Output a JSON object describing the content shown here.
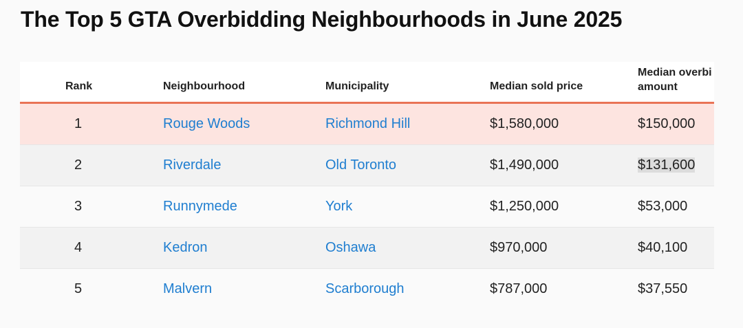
{
  "title": "The Top 5 GTA Overbidding Neighbourhoods in June 2025",
  "table": {
    "headers": {
      "rank": "Rank",
      "neighbourhood": "Neighbourhood",
      "municipality": "Municipality",
      "price": "Median sold price",
      "overbid_line1": "Median overbi",
      "overbid_line2": "amount"
    },
    "rows": [
      {
        "rank": "1",
        "neighbourhood": "Rouge Woods",
        "municipality": "Richmond Hill",
        "price": "$1,580,000",
        "overbid": "$150,000"
      },
      {
        "rank": "2",
        "neighbourhood": "Riverdale",
        "municipality": "Old Toronto",
        "price": "$1,490,000",
        "overbid": "$131,600"
      },
      {
        "rank": "3",
        "neighbourhood": "Runnymede",
        "municipality": "York",
        "price": "$1,250,000",
        "overbid": "$53,000"
      },
      {
        "rank": "4",
        "neighbourhood": "Kedron",
        "municipality": "Oshawa",
        "price": "$970,000",
        "overbid": "$40,100"
      },
      {
        "rank": "5",
        "neighbourhood": "Malvern",
        "municipality": "Scarborough",
        "price": "$787,000",
        "overbid": "$37,550"
      }
    ]
  },
  "colors": {
    "accent_border": "#e97356",
    "highlight_row": "#fde4e0",
    "link": "#1f7ed0"
  }
}
